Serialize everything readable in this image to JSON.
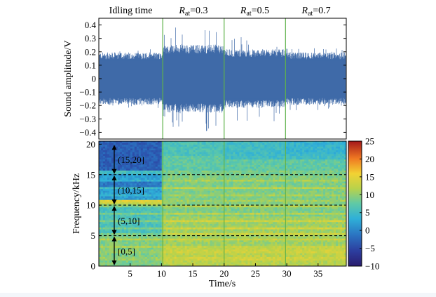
{
  "chart_data": [
    {
      "type": "line",
      "panel": "waveform",
      "ylabel": "Sound amplitude/V",
      "yticks": [
        "0.4",
        "0.3",
        "0.2",
        "0.1",
        "0",
        "−0.1",
        "−0.2",
        "−0.3",
        "−0.4"
      ],
      "ytick_values": [
        0.4,
        0.3,
        0.2,
        0.1,
        0,
        -0.1,
        -0.2,
        -0.3,
        -0.4
      ],
      "ylim": [
        -0.45,
        0.45
      ],
      "xlim": [
        0,
        39.5
      ],
      "series_color": "#3f6aa8",
      "segment_color": "#5fb24a",
      "segment_boundaries_s": [
        10.2,
        20.0,
        29.8
      ],
      "segment_labels": [
        {
          "main": "Idling time",
          "sub": "",
          "tail": "",
          "x": 5.1
        },
        {
          "main": "R",
          "sub": "at",
          "tail": "=0.3",
          "x": 15.1
        },
        {
          "main": "R",
          "sub": "at",
          "tail": "=0.5",
          "x": 24.9
        },
        {
          "main": "R",
          "sub": "at",
          "tail": "=0.7",
          "x": 34.7
        }
      ],
      "envelope": [
        {
          "t_start": 0,
          "t_end": 10.2,
          "typical_peak": 0.17,
          "max_peak": 0.22
        },
        {
          "t_start": 10.2,
          "t_end": 20.0,
          "typical_peak": 0.22,
          "max_peak": 0.4
        },
        {
          "t_start": 20.0,
          "t_end": 29.8,
          "typical_peak": 0.19,
          "max_peak": 0.32
        },
        {
          "t_start": 29.8,
          "t_end": 39.5,
          "typical_peak": 0.17,
          "max_peak": 0.24
        }
      ]
    },
    {
      "type": "heatmap",
      "panel": "spectrogram",
      "xlabel": "Time/s",
      "ylabel": "Frequency/kHz",
      "xticks": [
        "5",
        "10",
        "15",
        "20",
        "25",
        "30",
        "35"
      ],
      "xtick_values": [
        5,
        10,
        15,
        20,
        25,
        30,
        35
      ],
      "yticks": [
        "0",
        "5",
        "10",
        "15",
        "20"
      ],
      "ytick_values": [
        0,
        5,
        10,
        15,
        20
      ],
      "xlim": [
        0,
        39.5
      ],
      "ylim": [
        0,
        20.5
      ],
      "band_boundaries_khz": [
        5,
        10,
        15
      ],
      "bands": [
        {
          "label": "[0,5]",
          "low": 0,
          "high": 5
        },
        {
          "label": "(5,10]",
          "low": 5,
          "high": 10
        },
        {
          "label": "(10,15]",
          "low": 10,
          "high": 15
        },
        {
          "label": "(15,20]",
          "low": 15,
          "high": 20
        }
      ],
      "colorbar": {
        "ticks": [
          "25",
          "20",
          "15",
          "10",
          "5",
          "0",
          "−5",
          "−10"
        ],
        "tick_values": [
          25,
          20,
          15,
          10,
          5,
          0,
          -5,
          -10
        ],
        "range": [
          -10,
          25
        ],
        "colormap": "jet"
      }
    }
  ]
}
